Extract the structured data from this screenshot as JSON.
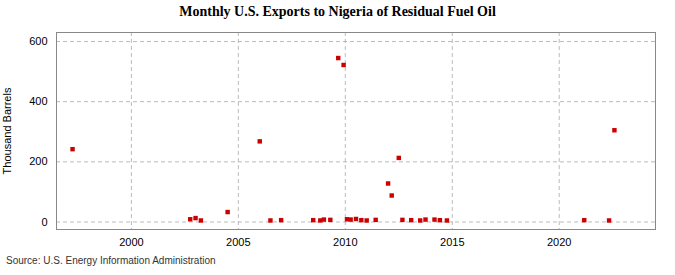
{
  "chart_data": {
    "type": "scatter",
    "title": "Monthly U.S. Exports to Nigeria of Residual Fuel Oil",
    "ylabel": "Thousand Barrels",
    "source": "Source: U.S. Energy Information Administration",
    "x": [
      1997.25,
      2002.75,
      2003.0,
      2003.25,
      2004.5,
      2006.0,
      2006.5,
      2007.0,
      2008.5,
      2008.83,
      2009.0,
      2009.3,
      2009.67,
      2009.92,
      2010.08,
      2010.25,
      2010.5,
      2010.75,
      2011.0,
      2011.42,
      2012.0,
      2012.17,
      2012.5,
      2012.67,
      2013.08,
      2013.5,
      2013.75,
      2014.17,
      2014.42,
      2014.75,
      2021.17,
      2022.33,
      2022.58
    ],
    "values": [
      242,
      9,
      13,
      5,
      33,
      268,
      5,
      6,
      6,
      5,
      8,
      7,
      545,
      522,
      9,
      8,
      10,
      6,
      5,
      7,
      128,
      88,
      213,
      7,
      6,
      5,
      8,
      8,
      6,
      5,
      6,
      5,
      305
    ],
    "color": "#cc0000",
    "marker": "square",
    "xlim": [
      1996.5,
      2024.5
    ],
    "xticks": [
      2000,
      2005,
      2010,
      2015,
      2020
    ],
    "ylim": [
      -25,
      630
    ],
    "yticks": [
      0,
      200,
      400,
      600
    ],
    "grid": true
  }
}
